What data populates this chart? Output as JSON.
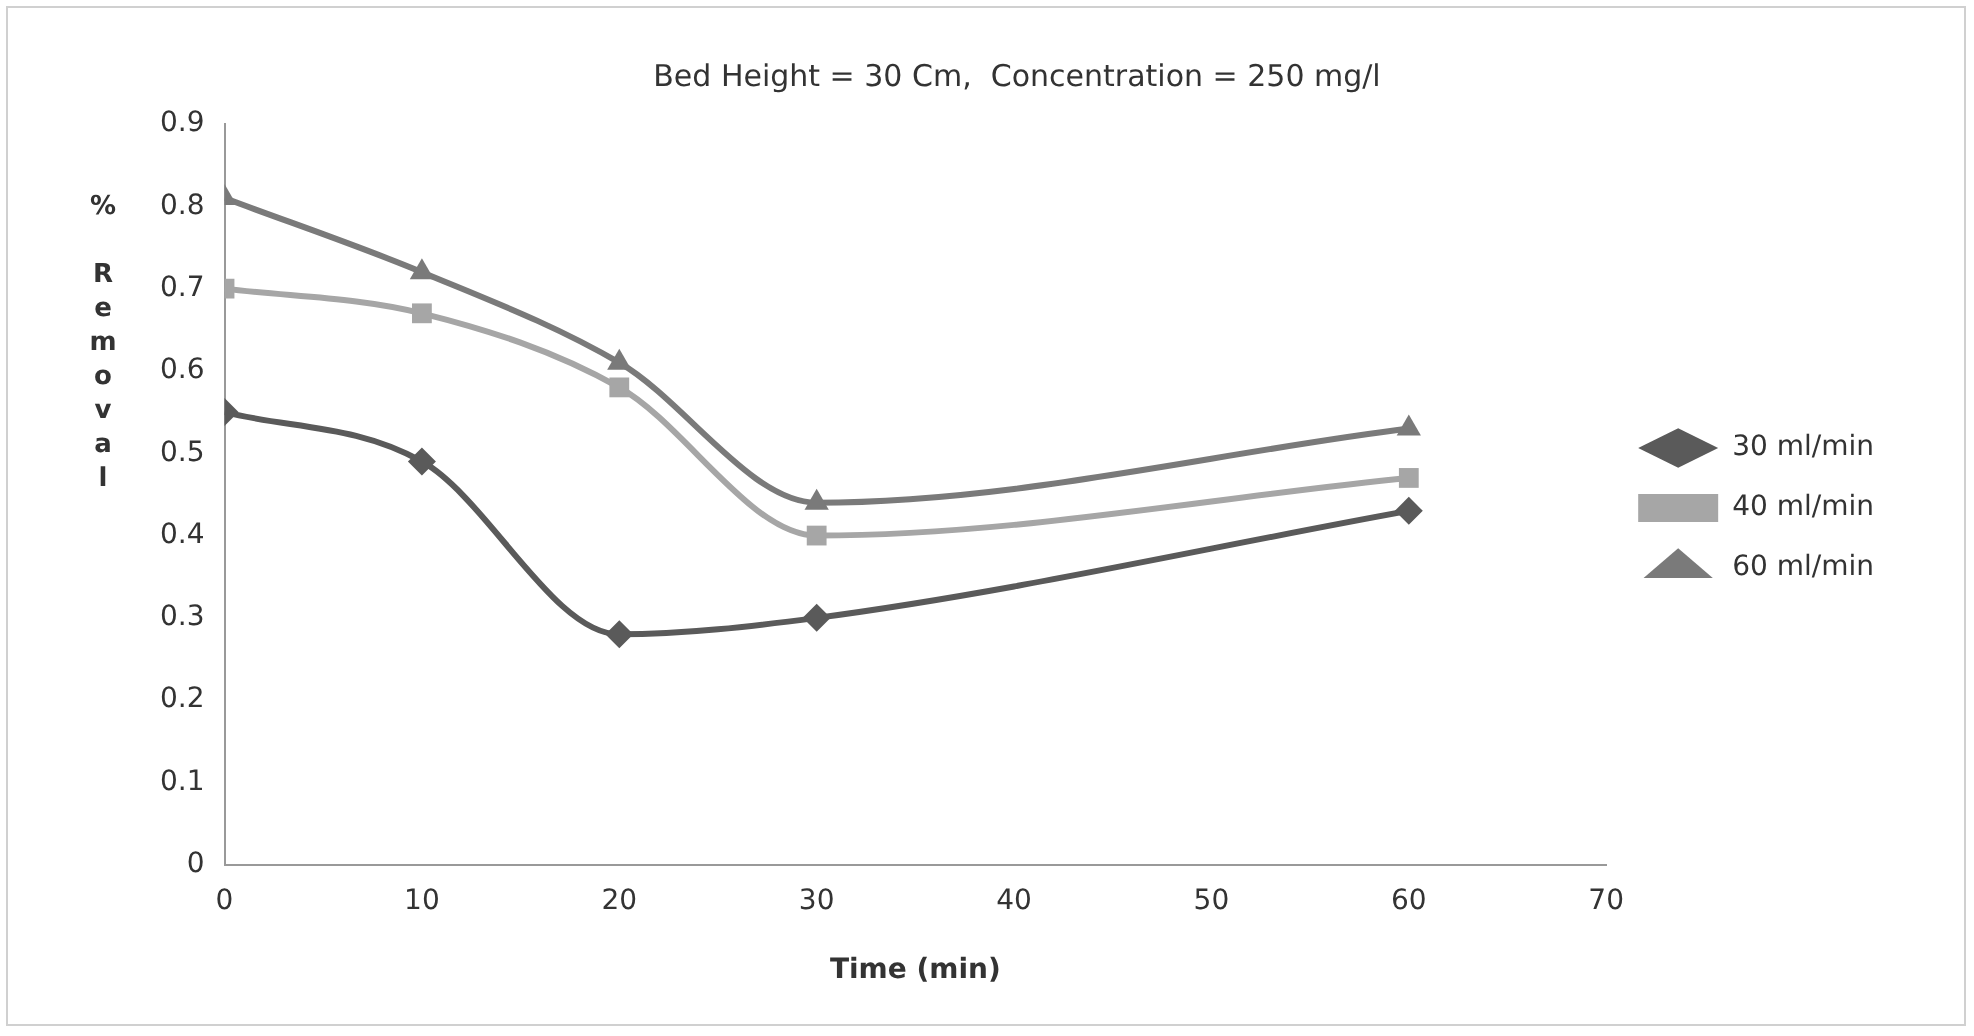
{
  "chart_data": {
    "type": "line",
    "title": "Bed Height = 30 Cm,  Concentration = 250 mg/l",
    "xlabel": "Time (min)",
    "ylabel": "% Removal",
    "x": [
      0,
      10,
      20,
      30,
      60
    ],
    "series": [
      {
        "name": "30 ml/min",
        "color": "#5a5a5a",
        "marker": "diamond",
        "values": [
          0.55,
          0.49,
          0.28,
          0.3,
          0.43
        ]
      },
      {
        "name": "40 ml/min",
        "color": "#a6a6a6",
        "marker": "square",
        "values": [
          0.7,
          0.67,
          0.58,
          0.4,
          0.47
        ]
      },
      {
        "name": "60 ml/min",
        "color": "#7a7a7a",
        "marker": "triangle",
        "values": [
          0.81,
          0.72,
          0.61,
          0.44,
          0.53
        ]
      }
    ],
    "xlim": [
      0,
      70
    ],
    "xticks": [
      0,
      10,
      20,
      30,
      40,
      50,
      60,
      70
    ],
    "ylim": [
      0,
      0.9
    ],
    "yticks": [
      0,
      0.1,
      0.2,
      0.3,
      0.4,
      0.5,
      0.6,
      0.7,
      0.8,
      0.9
    ],
    "grid": false,
    "legend": "right",
    "line_style": "solid"
  }
}
